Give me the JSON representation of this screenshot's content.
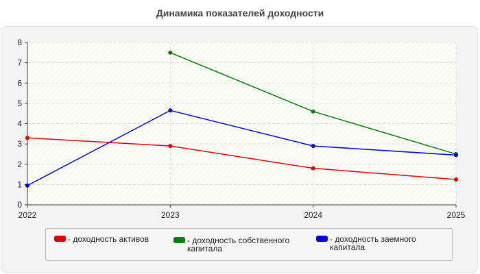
{
  "chart_data": {
    "type": "line",
    "title": "Динамика показателей доходности",
    "x": [
      "2022",
      "2023",
      "2024",
      "2025"
    ],
    "ylim": [
      0,
      8
    ],
    "y_ticks": [
      "0",
      "1",
      "2",
      "3",
      "4",
      "5",
      "6",
      "7",
      "8"
    ],
    "grid": true,
    "legend_position": "bottom",
    "series": [
      {
        "name": "доходность активов",
        "legend_label": "- доходность активов",
        "color": "#e00000",
        "values": [
          3.3,
          2.9,
          1.8,
          1.25
        ]
      },
      {
        "name": "доходность собственного капитала",
        "legend_label": "- доходность собственного капитала",
        "color": "#008000",
        "values": [
          null,
          7.5,
          4.6,
          2.5
        ]
      },
      {
        "name": "доходность заемного капитала",
        "legend_label": "- доходность заемного капитала",
        "color": "#0000dd",
        "values": [
          0.95,
          4.65,
          2.9,
          2.45
        ]
      }
    ]
  }
}
